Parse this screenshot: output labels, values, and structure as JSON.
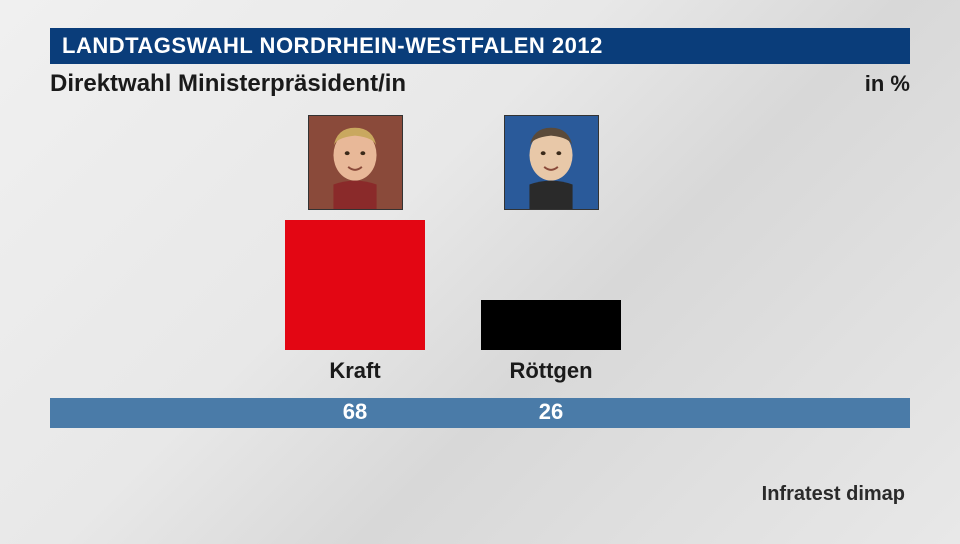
{
  "header": {
    "title": "LANDTAGSWAHL NORDRHEIN-WESTFALEN 2012",
    "subtitle": "Direktwahl Ministerpräsident/in",
    "unit": "in %"
  },
  "chart": {
    "type": "bar",
    "max_value": 100,
    "bar_area_height": 130,
    "header_bar_color": "#0a3d7a",
    "value_bar_color": "#4a7ba8",
    "candidates": [
      {
        "name": "Kraft",
        "value": 68,
        "bar_color": "#e30613",
        "portrait_bg": "#8a4a3a",
        "portrait_skin": "#e8b898",
        "portrait_hair": "#c9a85f"
      },
      {
        "name": "Röttgen",
        "value": 26,
        "bar_color": "#000000",
        "portrait_bg": "#2a5a9a",
        "portrait_skin": "#e8c8a8",
        "portrait_hair": "#5a4a3a"
      }
    ]
  },
  "source": "Infratest dimap"
}
